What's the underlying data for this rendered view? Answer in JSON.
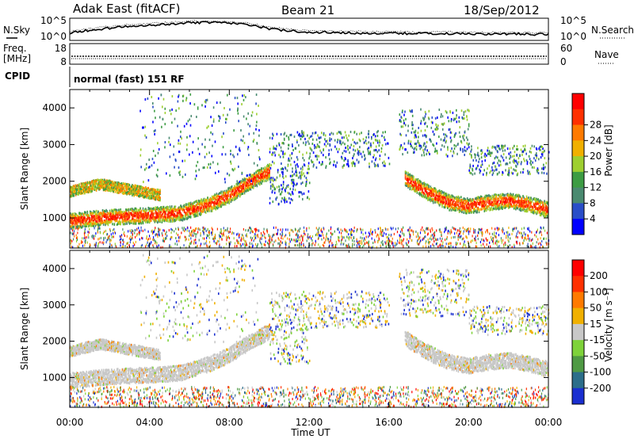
{
  "header": {
    "station": "Adak East (fitACF)",
    "beam": "Beam 21",
    "date": "18/Sep/2012",
    "cpid_text": "normal (fast) 151 RF"
  },
  "chart_data": [
    {
      "type": "line",
      "title": "",
      "left_label": "N.Sky",
      "right_label": "N.Search",
      "left_ticks": [
        "10^5",
        "10^0"
      ],
      "right_ticks": [
        "10^5",
        "10^0"
      ],
      "series_nsky": {
        "x_hours": [
          0,
          1,
          2,
          3,
          4,
          5,
          6,
          7,
          8,
          9,
          10,
          11,
          12,
          13,
          14,
          15,
          16,
          17,
          18,
          19,
          20,
          21,
          22,
          23,
          24
        ],
        "log_values": [
          1.5,
          2.3,
          2.8,
          3.3,
          3.6,
          3.9,
          4.2,
          4.3,
          4.2,
          3.6,
          2.7,
          2.1,
          1.8,
          1.7,
          1.6,
          1.5,
          1.5,
          1.4,
          1.4,
          1.4,
          1.3,
          1.3,
          1.3,
          1.2,
          1.2
        ]
      }
    },
    {
      "type": "line",
      "left_label": "Freq.",
      "left_unit": "[MHz]",
      "right_label": "Nave",
      "left_ticks": [
        "18",
        "8"
      ],
      "right_ticks": [
        "60",
        "0"
      ],
      "cpid_label": "CPID"
    },
    {
      "type": "heatmap",
      "variable": "Power",
      "ylabel": "Slant Range [km]",
      "xlabel": "Time UT",
      "ylim": [
        180,
        4500
      ],
      "xlim_hours": [
        0,
        24
      ],
      "x_ticks": [
        "00:00",
        "04:00",
        "08:00",
        "12:00",
        "16:00",
        "20:00",
        "00:00"
      ],
      "y_ticks": [
        1000,
        2000,
        3000,
        4000
      ],
      "colorbar_label": "Power [dB]",
      "colorbar_ticks": [
        4,
        8,
        12,
        16,
        20,
        24,
        28
      ],
      "colors": [
        "#0000ff",
        "#2a4ec8",
        "#4a8a70",
        "#3d9c43",
        "#9ecf30",
        "#f0b000",
        "#ff7a00",
        "#ff3000",
        "#ff0000"
      ],
      "echo_bands": [
        {
          "hours": [
            0,
            2,
            4,
            5.5,
            7,
            8,
            9,
            10
          ],
          "range_km": [
            950,
            1050,
            1100,
            1150,
            1400,
            1650,
            2000,
            2300
          ]
        },
        {
          "hours": [
            0,
            1.5,
            3,
            4.5
          ],
          "range_km": [
            1750,
            1950,
            1800,
            1650
          ]
        },
        {
          "hours": [
            16.8,
            18,
            19,
            20,
            21,
            22,
            23,
            24
          ],
          "range_km": [
            2100,
            1700,
            1450,
            1350,
            1450,
            1500,
            1400,
            1250
          ]
        }
      ]
    },
    {
      "type": "heatmap",
      "variable": "Velocity",
      "ylabel": "Slant Range [km]",
      "xlabel": "Time UT",
      "ylim": [
        180,
        4500
      ],
      "xlim_hours": [
        0,
        24
      ],
      "x_ticks": [
        "00:00",
        "04:00",
        "08:00",
        "12:00",
        "16:00",
        "20:00",
        "00:00"
      ],
      "y_ticks": [
        1000,
        2000,
        3000,
        4000
      ],
      "colorbar_label": "Velocity [m s⁻¹]",
      "colorbar_ticks": [
        200,
        100,
        50,
        15,
        -15,
        -50,
        -100,
        -200
      ],
      "colors": [
        "#1a2fd0",
        "#2c6e8a",
        "#4f9a44",
        "#7ed23a",
        "#c8c8c8",
        "#f0b000",
        "#ff7a00",
        "#ff3000",
        "#ff0000"
      ]
    }
  ]
}
